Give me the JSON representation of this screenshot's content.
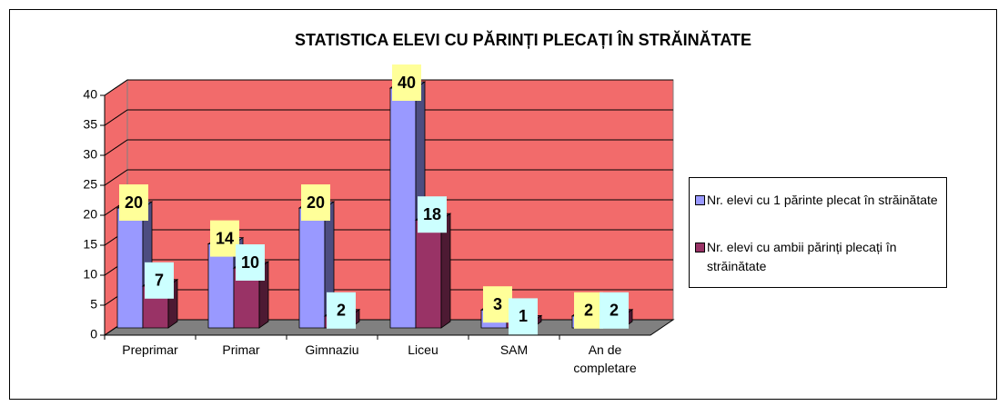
{
  "chart_data": {
    "type": "bar3d",
    "title": "STATISTICA ELEVI CU PĂRINȚI PLECAȚI ÎN STRĂINĂTATE",
    "categories": [
      "Preprimar",
      "Primar",
      "Gimnaziu",
      "Liceu",
      "SAM",
      "An de completare"
    ],
    "series": [
      {
        "name": "Nr. elevi cu 1 părinte plecat în străinătate",
        "color": "#9999ff",
        "label_color": "#ffff99",
        "values": [
          20,
          14,
          20,
          40,
          3,
          2
        ]
      },
      {
        "name": "Nr. elevi cu ambii părinți plecați în străinătate",
        "color": "#993366",
        "label_color": "#ccffff",
        "values": [
          7,
          10,
          2,
          18,
          1,
          2
        ]
      }
    ],
    "ylim": [
      0,
      40
    ],
    "yticks": [
      0,
      5,
      10,
      15,
      20,
      25,
      30,
      35,
      40
    ],
    "grid": true,
    "wall_color": "#f26b6b",
    "floor_color": "#808080",
    "legend": "right"
  }
}
